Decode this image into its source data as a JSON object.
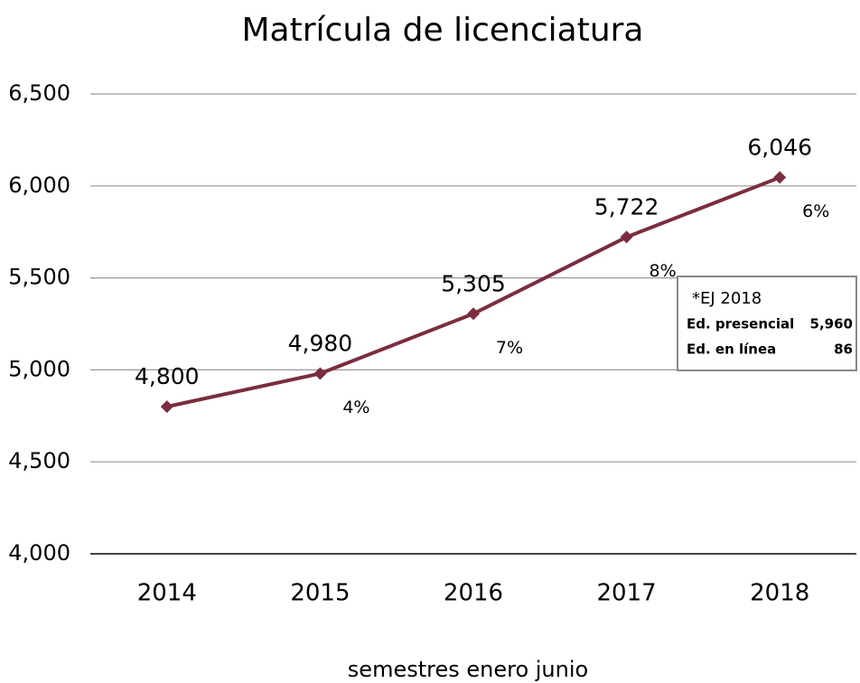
{
  "chart_data": {
    "type": "line",
    "title": "Matrícula de licenciatura",
    "x_label": "semestres  enero junio",
    "categories": [
      "2014",
      "2015",
      "2016",
      "2017",
      "2018"
    ],
    "series": [
      {
        "name": "Matrícula",
        "color": "#7b2d3f",
        "values": [
          4800,
          4980,
          5305,
          5722,
          6046
        ],
        "value_labels": [
          "4,800",
          "4,980",
          "5,305",
          "5,722",
          "6,046"
        ]
      }
    ],
    "growth_labels": [
      null,
      "4%",
      "7%",
      "8%",
      "6%"
    ],
    "ylim": [
      4000,
      6500
    ],
    "yticks": [
      {
        "value": 4000,
        "label": "4,000"
      },
      {
        "value": 4500,
        "label": "4,500"
      },
      {
        "value": 5000,
        "label": "5,000"
      },
      {
        "value": 5500,
        "label": "5,500"
      },
      {
        "value": 6000,
        "label": "6,000"
      },
      {
        "value": 6500,
        "label": "6,500"
      }
    ],
    "grid": true,
    "note": {
      "title": "*EJ 2018",
      "rows": [
        {
          "label": "Ed. presencial",
          "value": "5,960"
        },
        {
          "label": "Ed. en línea",
          "value": "86"
        }
      ]
    }
  }
}
